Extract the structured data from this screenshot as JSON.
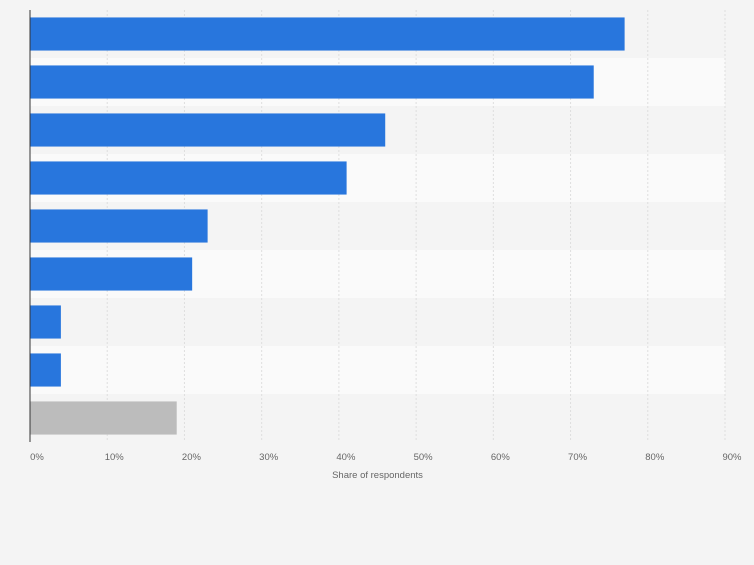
{
  "chart_data": {
    "type": "bar",
    "orientation": "horizontal",
    "title": "",
    "xlabel": "Share of respondents",
    "ylabel": "",
    "xlim": [
      0,
      90
    ],
    "x_ticks": [
      "0%",
      "10%",
      "20%",
      "30%",
      "40%",
      "50%",
      "60%",
      "70%",
      "80%",
      "90%"
    ],
    "categories": [
      "",
      "",
      "",
      "",
      "",
      "",
      "",
      "",
      ""
    ],
    "values": [
      77,
      73,
      46,
      41,
      23,
      21,
      4,
      4,
      19
    ],
    "bar_colors": [
      "#2876dd",
      "#2876dd",
      "#2876dd",
      "#2876dd",
      "#2876dd",
      "#2876dd",
      "#2876dd",
      "#2876dd",
      "#bcbcbc"
    ],
    "grid": true,
    "legend": "none"
  }
}
